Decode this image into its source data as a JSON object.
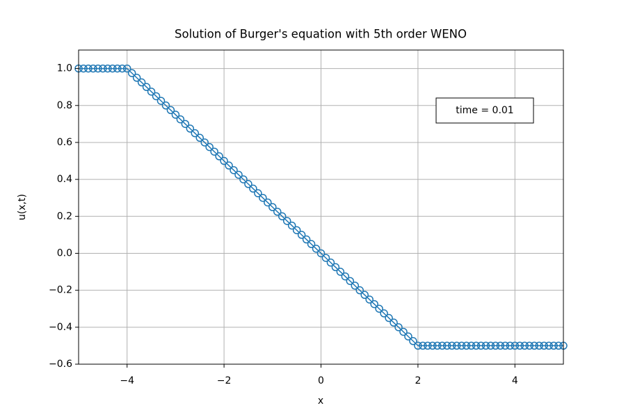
{
  "chart_data": {
    "type": "line",
    "title": "Solution of Burger's equation with 5th order WENO",
    "xlabel": "x",
    "ylabel": "u(x,t)",
    "annotation": "time = 0.01",
    "color": "#1f77b4",
    "marker": "circle",
    "grid": true,
    "xlim": [
      -5,
      5
    ],
    "ylim": [
      -0.6,
      1.1
    ],
    "xticks": [
      {
        "value": -4,
        "label": "−4"
      },
      {
        "value": -2,
        "label": "−2"
      },
      0,
      2,
      4
    ],
    "yticks": [
      {
        "value": -0.6,
        "label": "−0.6"
      },
      {
        "value": -0.4,
        "label": "−0.4"
      },
      {
        "value": -0.2,
        "label": "−0.2"
      },
      {
        "value": 0,
        "label": "0.0"
      },
      0.2,
      0.4,
      0.6,
      0.8,
      {
        "value": 1,
        "label": "1.0"
      }
    ],
    "x": [
      -5,
      -4.9,
      -4.8,
      -4.7,
      -4.6,
      -4.5,
      -4.4,
      -4.3,
      -4.2,
      -4.1,
      -4,
      -3.9,
      -3.8,
      -3.7,
      -3.6,
      -3.5,
      -3.4,
      -3.3,
      -3.2,
      -3.1,
      -3,
      -2.9,
      -2.8,
      -2.7,
      -2.6,
      -2.5,
      -2.4,
      -2.3,
      -2.2,
      -2.1,
      -2,
      -1.9,
      -1.8,
      -1.7,
      -1.6,
      -1.5,
      -1.4,
      -1.3,
      -1.2,
      -1.1,
      -1,
      -0.9,
      -0.8,
      -0.7,
      -0.6,
      -0.5,
      -0.4,
      -0.3,
      -0.2,
      -0.1,
      0,
      0.1,
      0.2,
      0.3,
      0.4,
      0.5,
      0.6,
      0.7,
      0.8,
      0.9,
      1,
      1.1,
      1.2,
      1.3,
      1.4,
      1.5,
      1.6,
      1.7,
      1.8,
      1.9,
      2,
      2.1,
      2.2,
      2.3,
      2.4,
      2.5,
      2.6,
      2.7,
      2.8,
      2.9,
      3,
      3.1,
      3.2,
      3.3,
      3.4,
      3.5,
      3.6,
      3.7,
      3.8,
      3.9,
      4,
      4.1,
      4.2,
      4.3,
      4.4,
      4.5,
      4.6,
      4.7,
      4.8,
      4.9,
      5
    ],
    "values": [
      1,
      1,
      1,
      1,
      1,
      1,
      1,
      1,
      1,
      1,
      1,
      0.975,
      0.95,
      0.925,
      0.9,
      0.875,
      0.85,
      0.825,
      0.8,
      0.775,
      0.75,
      0.725,
      0.7,
      0.675,
      0.65,
      0.625,
      0.6,
      0.575,
      0.55,
      0.525,
      0.5,
      0.475,
      0.45,
      0.425,
      0.4,
      0.375,
      0.35,
      0.325,
      0.3,
      0.275,
      0.25,
      0.225,
      0.2,
      0.175,
      0.15,
      0.125,
      0.1,
      0.075,
      0.05,
      0.025,
      0,
      -0.025,
      -0.05,
      -0.075,
      -0.1,
      -0.125,
      -0.15,
      -0.175,
      -0.2,
      -0.225,
      -0.25,
      -0.275,
      -0.3,
      -0.325,
      -0.35,
      -0.375,
      -0.4,
      -0.425,
      -0.45,
      -0.475,
      -0.5,
      -0.5,
      -0.5,
      -0.5,
      -0.5,
      -0.5,
      -0.5,
      -0.5,
      -0.5,
      -0.5,
      -0.5,
      -0.5,
      -0.5,
      -0.5,
      -0.5,
      -0.5,
      -0.5,
      -0.5,
      -0.5,
      -0.5,
      -0.5,
      -0.5,
      -0.5,
      -0.5,
      -0.5,
      -0.5,
      -0.5,
      -0.5,
      -0.5,
      -0.5,
      -0.5
    ]
  }
}
